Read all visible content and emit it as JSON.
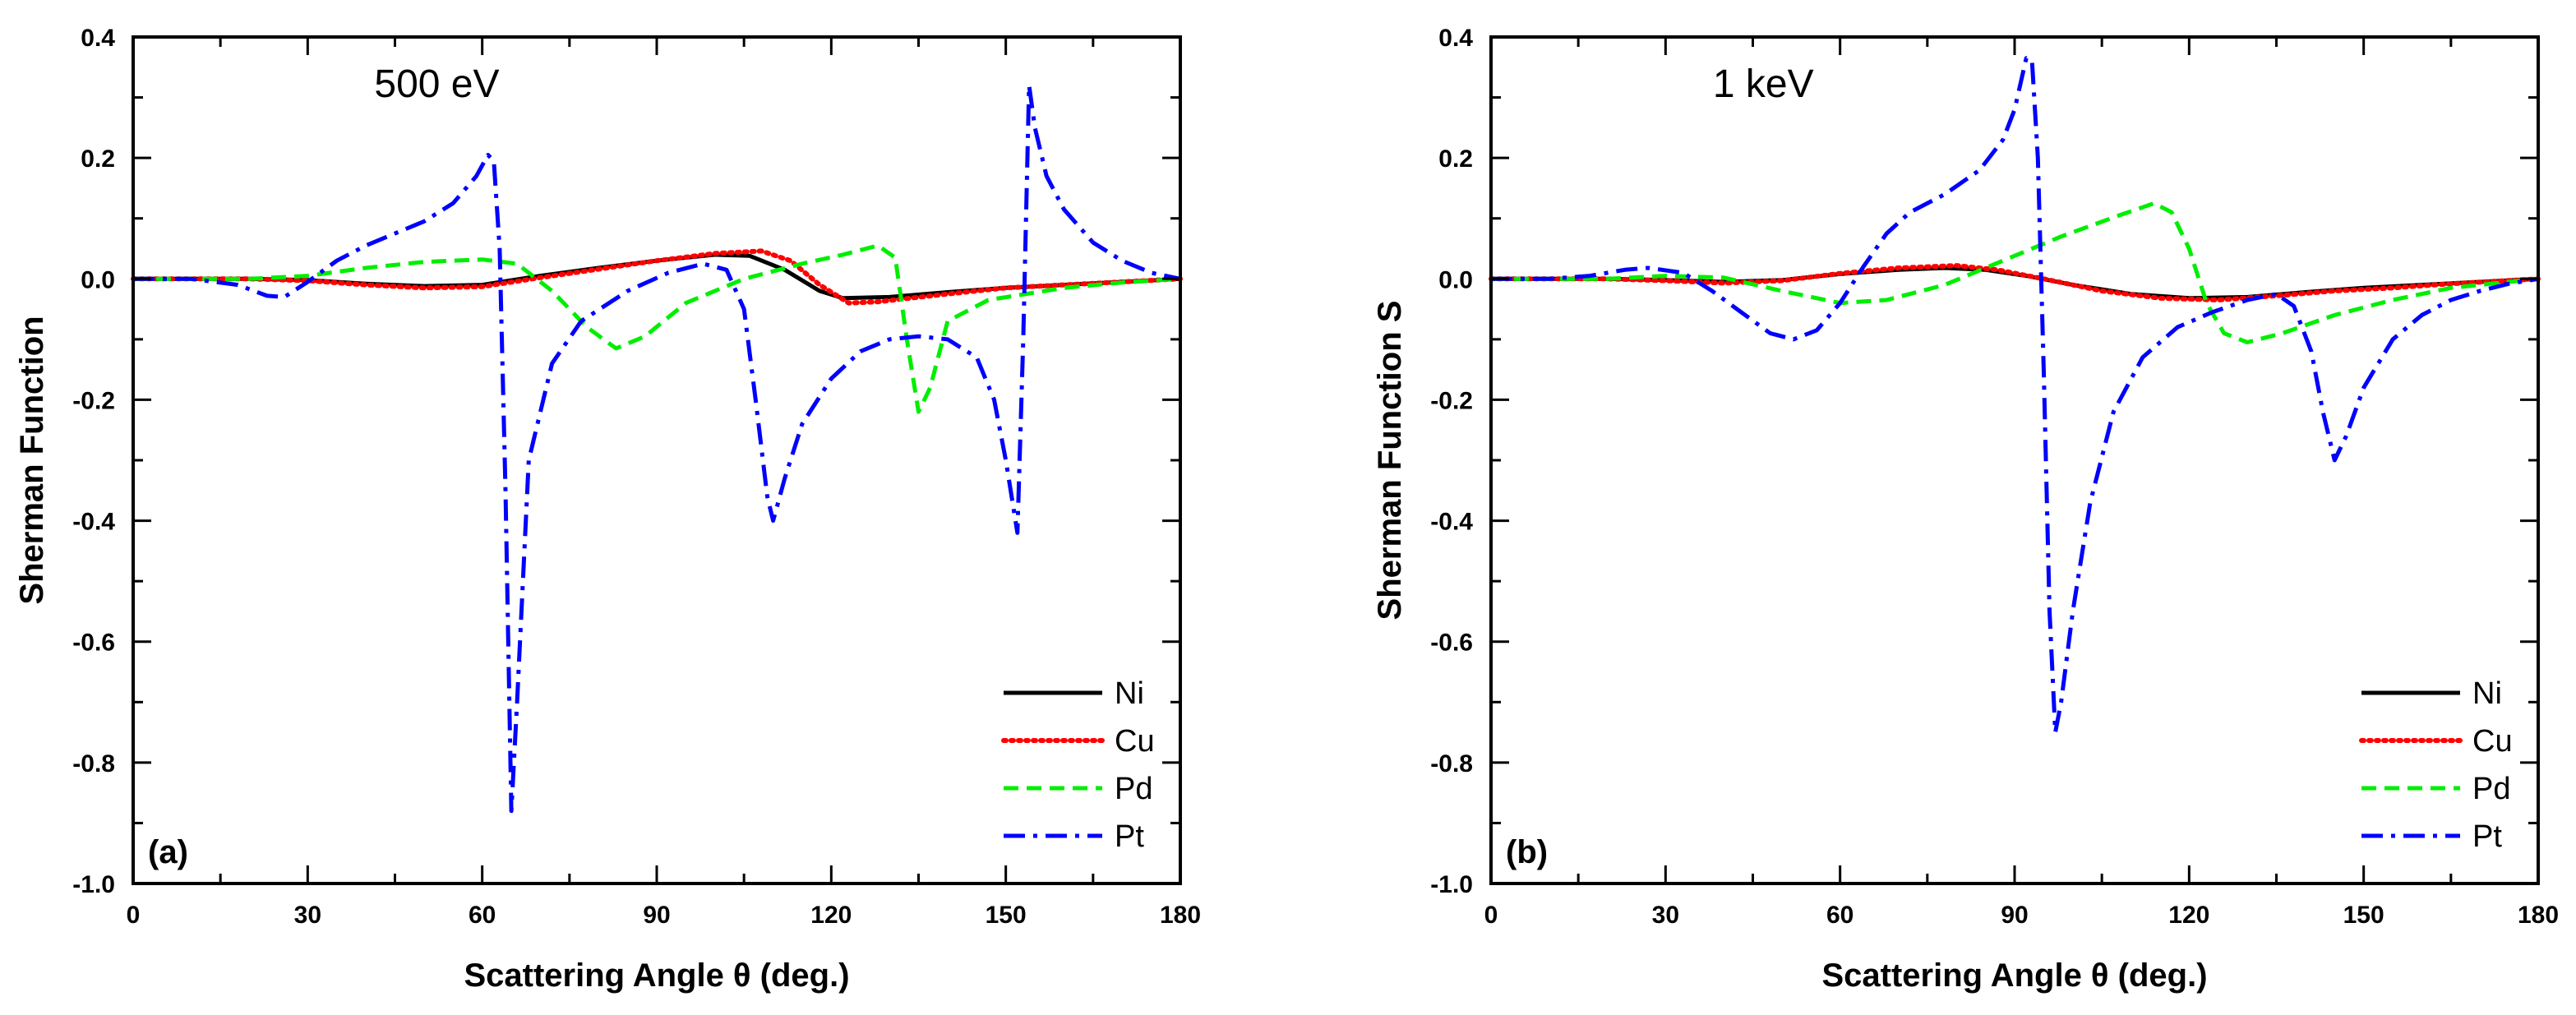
{
  "chart_data": [
    {
      "type": "line",
      "panel_label": "(a)",
      "annotation": "500 eV",
      "xlabel": "Scattering Angle θ (deg.)",
      "ylabel": "Sherman Function",
      "xlim": [
        0,
        180
      ],
      "ylim": [
        -1.0,
        0.4
      ],
      "x_ticks": [
        0,
        30,
        60,
        90,
        120,
        150,
        180
      ],
      "x_tick_labels": [
        "0",
        "30",
        "60",
        "90",
        "120",
        "150",
        "180"
      ],
      "y_ticks": [
        -1.0,
        -0.8,
        -0.6,
        -0.4,
        -0.2,
        0.0,
        0.2,
        0.4
      ],
      "y_tick_labels": [
        "-1.0",
        "-0.8",
        "-0.6",
        "-0.4",
        "-0.2",
        "0.0",
        "0.2",
        "0.4"
      ],
      "grid": false,
      "legend_position": "bottom-right",
      "series": [
        {
          "name": "Ni",
          "color": "#000000",
          "style": "solid",
          "points": [
            [
              0,
              0
            ],
            [
              20,
              0
            ],
            [
              30,
              -0.002
            ],
            [
              40,
              -0.008
            ],
            [
              50,
              -0.012
            ],
            [
              60,
              -0.01
            ],
            [
              70,
              0.005
            ],
            [
              80,
              0.018
            ],
            [
              90,
              0.03
            ],
            [
              100,
              0.04
            ],
            [
              106,
              0.038
            ],
            [
              112,
              0.015
            ],
            [
              118,
              -0.02
            ],
            [
              122,
              -0.032
            ],
            [
              130,
              -0.03
            ],
            [
              140,
              -0.022
            ],
            [
              150,
              -0.015
            ],
            [
              160,
              -0.01
            ],
            [
              170,
              -0.005
            ],
            [
              180,
              0
            ]
          ]
        },
        {
          "name": "Cu",
          "color": "#ff0000",
          "style": "dotted",
          "points": [
            [
              0,
              0
            ],
            [
              20,
              0
            ],
            [
              30,
              -0.003
            ],
            [
              40,
              -0.01
            ],
            [
              50,
              -0.015
            ],
            [
              60,
              -0.013
            ],
            [
              70,
              0.002
            ],
            [
              80,
              0.016
            ],
            [
              90,
              0.03
            ],
            [
              100,
              0.042
            ],
            [
              108,
              0.046
            ],
            [
              113,
              0.03
            ],
            [
              118,
              -0.01
            ],
            [
              123,
              -0.04
            ],
            [
              128,
              -0.038
            ],
            [
              140,
              -0.025
            ],
            [
              150,
              -0.015
            ],
            [
              160,
              -0.01
            ],
            [
              170,
              -0.005
            ],
            [
              180,
              0
            ]
          ]
        },
        {
          "name": "Pd",
          "color": "#00ee00",
          "style": "dashed",
          "points": [
            [
              0,
              0
            ],
            [
              10,
              0
            ],
            [
              20,
              0
            ],
            [
              30,
              0.005
            ],
            [
              40,
              0.018
            ],
            [
              50,
              0.028
            ],
            [
              60,
              0.032
            ],
            [
              66,
              0.025
            ],
            [
              72,
              -0.02
            ],
            [
              78,
              -0.08
            ],
            [
              83,
              -0.115
            ],
            [
              88,
              -0.095
            ],
            [
              95,
              -0.04
            ],
            [
              105,
              0.0
            ],
            [
              115,
              0.025
            ],
            [
              122,
              0.04
            ],
            [
              128,
              0.055
            ],
            [
              131,
              0.035
            ],
            [
              133,
              -0.1
            ],
            [
              135,
              -0.22
            ],
            [
              137,
              -0.18
            ],
            [
              140,
              -0.07
            ],
            [
              147,
              -0.035
            ],
            [
              160,
              -0.015
            ],
            [
              170,
              -0.006
            ],
            [
              180,
              0
            ]
          ]
        },
        {
          "name": "Pt",
          "color": "#0000ff",
          "style": "dashdot",
          "points": [
            [
              0,
              0
            ],
            [
              10,
              0
            ],
            [
              18,
              -0.01
            ],
            [
              23,
              -0.028
            ],
            [
              26,
              -0.03
            ],
            [
              30,
              -0.005
            ],
            [
              35,
              0.03
            ],
            [
              40,
              0.055
            ],
            [
              45,
              0.075
            ],
            [
              50,
              0.095
            ],
            [
              55,
              0.125
            ],
            [
              59,
              0.17
            ],
            [
              61,
              0.205
            ],
            [
              62,
              0.195
            ],
            [
              63,
              0.05
            ],
            [
              64,
              -0.35
            ],
            [
              65,
              -0.88
            ],
            [
              66,
              -0.7
            ],
            [
              68,
              -0.3
            ],
            [
              72,
              -0.14
            ],
            [
              77,
              -0.07
            ],
            [
              85,
              -0.02
            ],
            [
              92,
              0.01
            ],
            [
              98,
              0.025
            ],
            [
              102,
              0.015
            ],
            [
              105,
              -0.05
            ],
            [
              107,
              -0.2
            ],
            [
              109,
              -0.36
            ],
            [
              110,
              -0.4
            ],
            [
              112,
              -0.33
            ],
            [
              115,
              -0.24
            ],
            [
              120,
              -0.165
            ],
            [
              125,
              -0.12
            ],
            [
              130,
              -0.1
            ],
            [
              135,
              -0.095
            ],
            [
              140,
              -0.1
            ],
            [
              145,
              -0.13
            ],
            [
              148,
              -0.2
            ],
            [
              150,
              -0.3
            ],
            [
              152,
              -0.42
            ],
            [
              153,
              -0.1
            ],
            [
              154,
              0.32
            ],
            [
              155,
              0.25
            ],
            [
              157,
              0.17
            ],
            [
              160,
              0.115
            ],
            [
              165,
              0.06
            ],
            [
              170,
              0.03
            ],
            [
              175,
              0.01
            ],
            [
              180,
              0
            ]
          ]
        }
      ]
    },
    {
      "type": "line",
      "panel_label": "(b)",
      "annotation": "1 keV",
      "xlabel": "Scattering Angle θ (deg.)",
      "ylabel": "Sherman Function S",
      "xlim": [
        0,
        180
      ],
      "ylim": [
        -1.0,
        0.4
      ],
      "x_ticks": [
        0,
        30,
        60,
        90,
        120,
        150,
        180
      ],
      "x_tick_labels": [
        "0",
        "30",
        "60",
        "90",
        "120",
        "150",
        "180"
      ],
      "y_ticks": [
        -1.0,
        -0.8,
        -0.6,
        -0.4,
        -0.2,
        0.0,
        0.2,
        0.4
      ],
      "y_tick_labels": [
        "-1.0",
        "-0.8",
        "-0.6",
        "-0.4",
        "-0.2",
        "0.0",
        "0.2",
        "0.4"
      ],
      "grid": false,
      "legend_position": "bottom-right",
      "series": [
        {
          "name": "Ni",
          "color": "#000000",
          "style": "solid",
          "points": [
            [
              0,
              0
            ],
            [
              20,
              0
            ],
            [
              30,
              -0.002
            ],
            [
              40,
              -0.005
            ],
            [
              50,
              -0.002
            ],
            [
              60,
              0.008
            ],
            [
              70,
              0.015
            ],
            [
              78,
              0.018
            ],
            [
              85,
              0.015
            ],
            [
              92,
              0.005
            ],
            [
              100,
              -0.01
            ],
            [
              110,
              -0.025
            ],
            [
              120,
              -0.032
            ],
            [
              130,
              -0.03
            ],
            [
              140,
              -0.022
            ],
            [
              150,
              -0.015
            ],
            [
              160,
              -0.01
            ],
            [
              170,
              -0.005
            ],
            [
              180,
              0
            ]
          ]
        },
        {
          "name": "Cu",
          "color": "#ff0000",
          "style": "dotted",
          "points": [
            [
              0,
              0
            ],
            [
              20,
              0
            ],
            [
              30,
              -0.003
            ],
            [
              40,
              -0.007
            ],
            [
              50,
              -0.003
            ],
            [
              60,
              0.009
            ],
            [
              70,
              0.018
            ],
            [
              80,
              0.022
            ],
            [
              87,
              0.015
            ],
            [
              95,
              0.0
            ],
            [
              105,
              -0.02
            ],
            [
              115,
              -0.032
            ],
            [
              125,
              -0.035
            ],
            [
              135,
              -0.028
            ],
            [
              145,
              -0.02
            ],
            [
              155,
              -0.015
            ],
            [
              165,
              -0.008
            ],
            [
              180,
              0
            ]
          ]
        },
        {
          "name": "Pd",
          "color": "#00ee00",
          "style": "dashed",
          "points": [
            [
              0,
              0
            ],
            [
              10,
              0
            ],
            [
              20,
              0
            ],
            [
              30,
              0.005
            ],
            [
              40,
              0.002
            ],
            [
              50,
              -0.02
            ],
            [
              60,
              -0.04
            ],
            [
              68,
              -0.035
            ],
            [
              78,
              -0.01
            ],
            [
              88,
              0.03
            ],
            [
              98,
              0.07
            ],
            [
              108,
              0.105
            ],
            [
              114,
              0.125
            ],
            [
              117,
              0.11
            ],
            [
              120,
              0.05
            ],
            [
              123,
              -0.04
            ],
            [
              126,
              -0.09
            ],
            [
              130,
              -0.105
            ],
            [
              136,
              -0.09
            ],
            [
              145,
              -0.06
            ],
            [
              155,
              -0.035
            ],
            [
              165,
              -0.015
            ],
            [
              180,
              0
            ]
          ]
        },
        {
          "name": "Pt",
          "color": "#0000ff",
          "style": "dashdot",
          "points": [
            [
              0,
              0
            ],
            [
              10,
              0
            ],
            [
              17,
              0.005
            ],
            [
              23,
              0.015
            ],
            [
              27,
              0.018
            ],
            [
              33,
              0.01
            ],
            [
              38,
              -0.02
            ],
            [
              43,
              -0.055
            ],
            [
              48,
              -0.09
            ],
            [
              52,
              -0.1
            ],
            [
              56,
              -0.085
            ],
            [
              60,
              -0.04
            ],
            [
              64,
              0.02
            ],
            [
              68,
              0.075
            ],
            [
              72,
              0.11
            ],
            [
              78,
              0.14
            ],
            [
              84,
              0.18
            ],
            [
              88,
              0.23
            ],
            [
              90,
              0.28
            ],
            [
              92,
              0.365
            ],
            [
              93,
              0.36
            ],
            [
              94,
              0.2
            ],
            [
              95,
              -0.15
            ],
            [
              96,
              -0.55
            ],
            [
              97,
              -0.75
            ],
            [
              98,
              -0.7
            ],
            [
              100,
              -0.55
            ],
            [
              103,
              -0.37
            ],
            [
              107,
              -0.22
            ],
            [
              112,
              -0.13
            ],
            [
              118,
              -0.08
            ],
            [
              124,
              -0.055
            ],
            [
              130,
              -0.035
            ],
            [
              135,
              -0.025
            ],
            [
              138,
              -0.045
            ],
            [
              141,
              -0.12
            ],
            [
              143,
              -0.22
            ],
            [
              145,
              -0.3
            ],
            [
              147,
              -0.26
            ],
            [
              150,
              -0.18
            ],
            [
              155,
              -0.1
            ],
            [
              160,
              -0.06
            ],
            [
              165,
              -0.035
            ],
            [
              170,
              -0.02
            ],
            [
              175,
              -0.008
            ],
            [
              180,
              0
            ]
          ]
        }
      ]
    }
  ]
}
